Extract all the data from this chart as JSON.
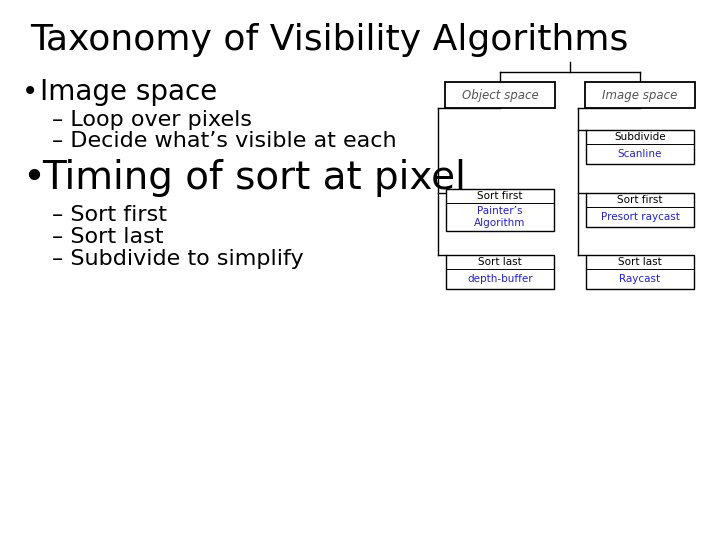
{
  "title": "Taxonomy of Visibility Algorithms",
  "bullet1": "Image space",
  "sub1a": "– Loop over pixels",
  "sub1b": "– Decide what’s visible at each",
  "bullet2": "Timing of sort at pixel",
  "sub2a": "– Sort first",
  "sub2b": "– Sort last",
  "sub2c": "– Subdivide to simplify",
  "bg_color": "#ffffff",
  "text_color_black": "#000000",
  "text_color_gray": "#555555",
  "text_color_blue": "#2222cc",
  "node_obj": "Object space",
  "node_img": "Image space",
  "node_subdiv_line1": "Subdivide",
  "node_subdiv_line2": "Scanline",
  "node_sf_obj_line1": "Sort first",
  "node_sf_obj_line2": "Painter’s\nAlgorithm",
  "node_sl_obj_line1": "Sort last",
  "node_sl_obj_line2": "depth-buffer",
  "node_sf_img_line1": "Sort first",
  "node_sf_img_line2": "Presort raycast",
  "node_sl_img_line1": "Sort last",
  "node_sl_img_line2": "Raycast",
  "title_fontsize": 26,
  "bullet_fontsize": 20,
  "sub_fontsize": 16,
  "bullet2_fontsize": 28
}
